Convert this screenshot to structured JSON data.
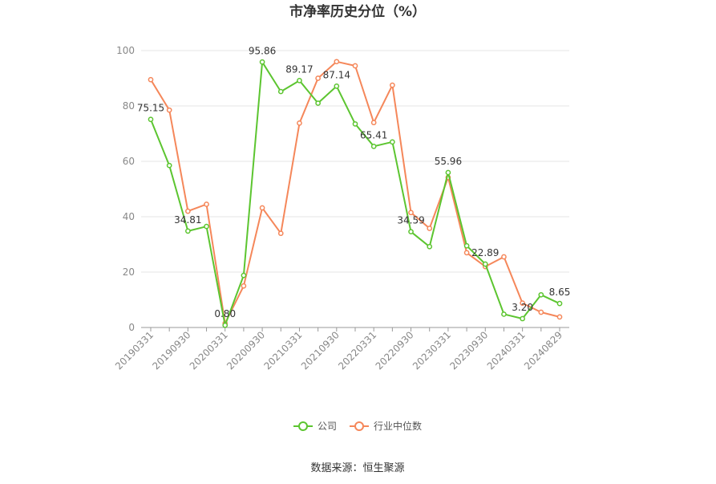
{
  "chart_data": {
    "type": "line",
    "title": "市净率历史分位（%）",
    "xlabel": "",
    "ylabel": "",
    "ylim": [
      0,
      100
    ],
    "yticks": [
      0,
      20,
      40,
      60,
      80,
      100
    ],
    "grid": true,
    "legend_position": "bottom-center",
    "x": [
      "20190331",
      "20190630",
      "20190930",
      "20191231",
      "20200331",
      "20200630",
      "20200930",
      "20201231",
      "20210331",
      "20210630",
      "20210930",
      "20211231",
      "20220331",
      "20220630",
      "20220930",
      "20221231",
      "20230331",
      "20230630",
      "20230930",
      "20231231",
      "20240331",
      "20240630",
      "20240829"
    ],
    "xtick_labels": [
      "20190331",
      "20190930",
      "20200331",
      "20200930",
      "20210331",
      "20210930",
      "20220331",
      "20220930",
      "20230331",
      "20230930",
      "20240331",
      "20240829"
    ],
    "series": [
      {
        "name": "公司",
        "color": "#5cc530",
        "values": [
          75.15,
          58.5,
          34.81,
          36.5,
          0.8,
          18.8,
          95.86,
          85.2,
          89.17,
          81.0,
          87.14,
          73.5,
          65.41,
          67.0,
          34.59,
          29.2,
          55.96,
          29.5,
          22.89,
          4.8,
          3.2,
          11.8,
          8.65
        ]
      },
      {
        "name": "行业中位数",
        "color": "#f5875a",
        "values": [
          89.5,
          78.5,
          42.0,
          44.5,
          1.5,
          15.0,
          43.2,
          34.0,
          73.8,
          90.0,
          96.0,
          94.5,
          74.0,
          87.5,
          41.5,
          35.8,
          54.2,
          27.0,
          22.0,
          25.5,
          8.8,
          5.5,
          3.8
        ]
      }
    ],
    "data_labels": [
      {
        "series": 0,
        "index": 0,
        "text": "75.15"
      },
      {
        "series": 0,
        "index": 2,
        "text": "34.81"
      },
      {
        "series": 0,
        "index": 4,
        "text": "0.80"
      },
      {
        "series": 0,
        "index": 6,
        "text": "95.86"
      },
      {
        "series": 0,
        "index": 8,
        "text": "89.17"
      },
      {
        "series": 0,
        "index": 10,
        "text": "87.14"
      },
      {
        "series": 0,
        "index": 12,
        "text": "65.41"
      },
      {
        "series": 0,
        "index": 14,
        "text": "34.59"
      },
      {
        "series": 0,
        "index": 16,
        "text": "55.96"
      },
      {
        "series": 0,
        "index": 18,
        "text": "22.89"
      },
      {
        "series": 0,
        "index": 20,
        "text": "3.20"
      },
      {
        "series": 0,
        "index": 22,
        "text": "8.65"
      }
    ]
  },
  "footer": {
    "source": "数据来源：恒生聚源"
  }
}
